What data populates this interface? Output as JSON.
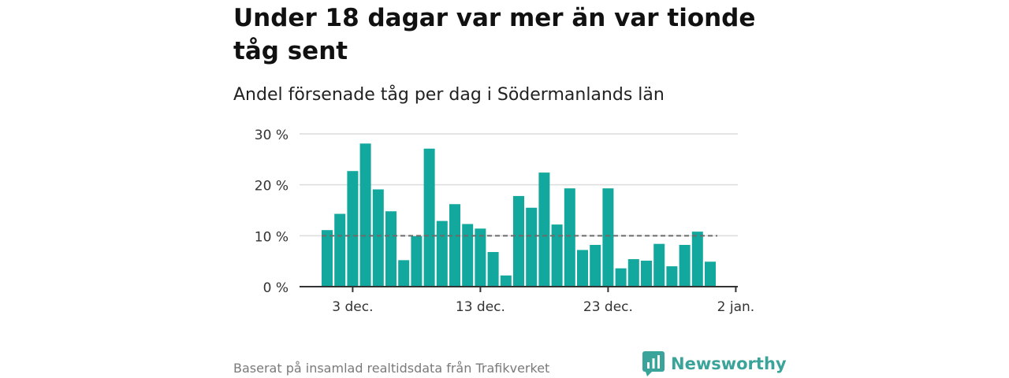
{
  "header": {
    "title": "Under 18 dagar var mer än var tionde tåg sent",
    "subtitle": "Andel försenade tåg per dag i Södermanlands län"
  },
  "footer": {
    "source": "Baserat på insamlad realtidsdata från Trafikverket",
    "brand": "Newsworthy"
  },
  "colors": {
    "bar": "#13a89e",
    "brand": "#3aa39a",
    "reference_line": "#6b6b6b"
  },
  "chart_data": {
    "type": "bar",
    "title": "Under 18 dagar var mer än var tionde tåg sent",
    "subtitle": "Andel försenade tåg per dag i Södermanlands län",
    "x_ticks": [
      {
        "day": 3,
        "label": "3 dec."
      },
      {
        "day": 13,
        "label": "13 dec."
      },
      {
        "day": 23,
        "label": "23 dec."
      },
      {
        "day": 33,
        "label": "2 jan."
      }
    ],
    "y_ticks": [
      {
        "value": 0,
        "label": "0 %"
      },
      {
        "value": 10,
        "label": "10 %"
      },
      {
        "value": 20,
        "label": "20 %"
      },
      {
        "value": 30,
        "label": "30 %"
      }
    ],
    "ylim": [
      0,
      30
    ],
    "grid": true,
    "reference_line": 10,
    "x": [
      "2025-12-01",
      "2025-12-02",
      "2025-12-03",
      "2025-12-04",
      "2025-12-05",
      "2025-12-06",
      "2025-12-07",
      "2025-12-08",
      "2025-12-09",
      "2025-12-10",
      "2025-12-11",
      "2025-12-12",
      "2025-12-13",
      "2025-12-14",
      "2025-12-15",
      "2025-12-16",
      "2025-12-17",
      "2025-12-18",
      "2025-12-19",
      "2025-12-20",
      "2025-12-21",
      "2025-12-22",
      "2025-12-23",
      "2025-12-24",
      "2025-12-25",
      "2025-12-26",
      "2025-12-27",
      "2025-12-28",
      "2025-12-29",
      "2025-12-30",
      "2025-12-31"
    ],
    "values": [
      11.1,
      14.3,
      22.7,
      28.1,
      19.1,
      14.8,
      5.2,
      9.9,
      27.1,
      12.9,
      16.2,
      12.3,
      11.4,
      6.8,
      2.2,
      17.8,
      15.5,
      22.4,
      12.2,
      19.3,
      7.2,
      8.2,
      19.3,
      3.6,
      5.4,
      5.1,
      8.4,
      4.0,
      8.2,
      10.8,
      4.9
    ]
  }
}
